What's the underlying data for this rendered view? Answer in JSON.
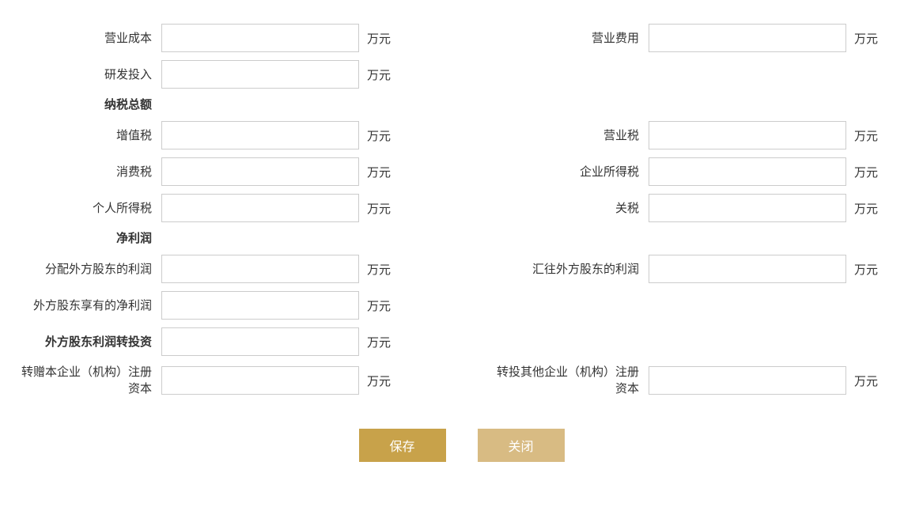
{
  "unit": "万元",
  "fields": {
    "operating_cost": {
      "label": "营业成本",
      "value": ""
    },
    "operating_expense": {
      "label": "营业费用",
      "value": ""
    },
    "rd_investment": {
      "label": "研发投入",
      "value": ""
    },
    "tax_total_header": {
      "label": "纳税总额"
    },
    "vat": {
      "label": "增值税",
      "value": ""
    },
    "business_tax": {
      "label": "营业税",
      "value": ""
    },
    "consumption_tax": {
      "label": "消费税",
      "value": ""
    },
    "corp_income_tax": {
      "label": "企业所得税",
      "value": ""
    },
    "personal_income_tax": {
      "label": "个人所得税",
      "value": ""
    },
    "customs_duty": {
      "label": "关税",
      "value": ""
    },
    "net_profit_header": {
      "label": "净利润"
    },
    "dist_foreign_profit": {
      "label": "分配外方股东的利润",
      "value": ""
    },
    "remit_foreign_profit": {
      "label": "汇往外方股东的利润",
      "value": ""
    },
    "foreign_net_profit": {
      "label": "外方股东享有的净利润",
      "value": ""
    },
    "foreign_reinvest_hdr": {
      "label": "外方股东利润转投资",
      "value": ""
    },
    "reinvest_self": {
      "label": "转赠本企业（机构）注册资本",
      "value": ""
    },
    "reinvest_other": {
      "label": "转投其他企业（机构）注册资本",
      "value": ""
    }
  },
  "buttons": {
    "save": "保存",
    "close": "关闭"
  },
  "colors": {
    "border": "#cccccc",
    "text": "#333333",
    "btn_save_bg": "#c8a24a",
    "btn_close_bg": "#d8bb83",
    "btn_text": "#ffffff"
  }
}
